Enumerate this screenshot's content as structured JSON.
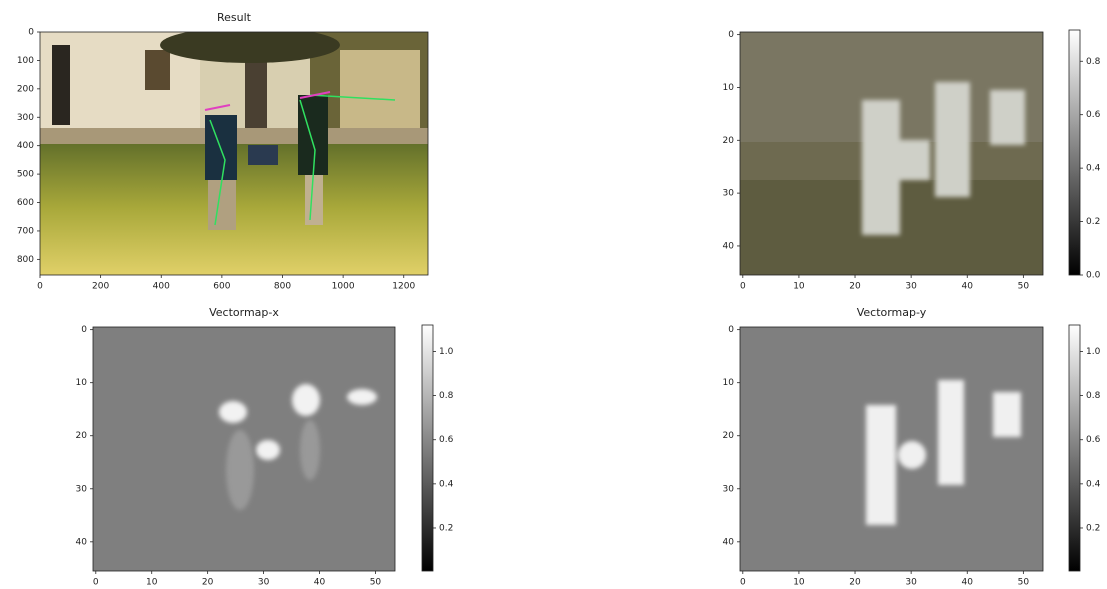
{
  "chart_data": [
    {
      "type": "image",
      "title": "Result",
      "xlim": [
        0,
        1280
      ],
      "ylim": [
        855,
        0
      ],
      "xticks": [
        0,
        200,
        400,
        600,
        800,
        1000,
        1200
      ],
      "yticks": [
        0,
        100,
        200,
        300,
        400,
        500,
        600,
        700,
        800
      ]
    },
    {
      "type": "image",
      "xlim": [
        -0.5,
        53.5
      ],
      "ylim": [
        45.5,
        -0.5
      ],
      "xticks": [
        0,
        10,
        20,
        30,
        40,
        50
      ],
      "yticks": [
        0,
        10,
        20,
        30,
        40
      ],
      "colorbar": {
        "lim": [
          0,
          0.917
        ],
        "ticks": [
          {
            "value": 0,
            "label": "0.0"
          },
          0.2,
          0.4,
          0.6,
          0.8
        ]
      }
    },
    {
      "type": "image",
      "title": "Vectormap-x",
      "xlim": [
        -0.5,
        53.5
      ],
      "ylim": [
        45.5,
        -0.5
      ],
      "xticks": [
        0,
        10,
        20,
        30,
        40,
        50
      ],
      "yticks": [
        0,
        10,
        20,
        30,
        40
      ],
      "colorbar": {
        "lim": [
          0.005,
          1.12
        ],
        "ticks": [
          0.2,
          0.4,
          0.6,
          0.8,
          {
            "value": 1,
            "label": "1.0"
          }
        ]
      }
    },
    {
      "type": "image",
      "title": "Vectormap-y",
      "xlim": [
        -0.5,
        53.5
      ],
      "ylim": [
        45.5,
        -0.5
      ],
      "xticks": [
        0,
        10,
        20,
        30,
        40,
        50
      ],
      "yticks": [
        0,
        10,
        20,
        30,
        40
      ],
      "colorbar": {
        "lim": [
          0.005,
          1.12
        ],
        "ticks": [
          0.2,
          0.4,
          0.6,
          0.8,
          {
            "value": 1,
            "label": "1.0"
          }
        ]
      }
    }
  ]
}
